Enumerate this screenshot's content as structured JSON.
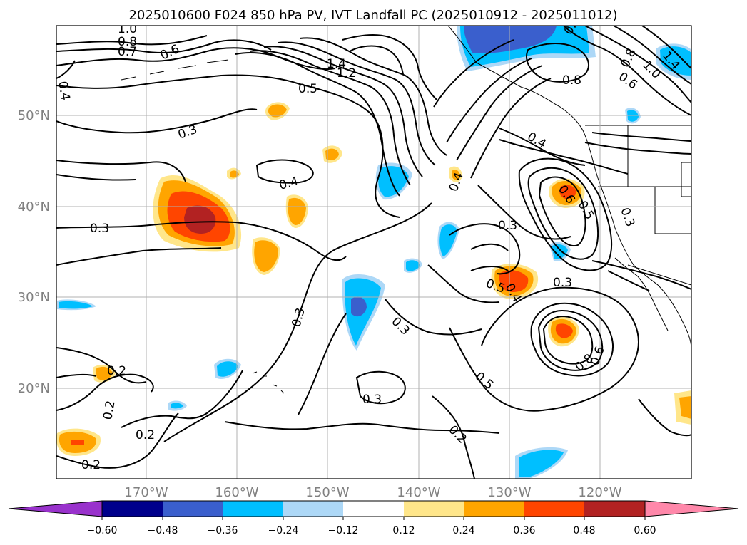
{
  "figure": {
    "title": "2025010600 F024 850 hPa PV, IVT Landfall PC (2025010912 - 2025011012)"
  },
  "map": {
    "lat_labels": [
      "50°N",
      "40°N",
      "30°N",
      "20°N"
    ],
    "lon_labels": [
      "170°W",
      "160°W",
      "150°W",
      "140°W",
      "130°W",
      "120°W"
    ],
    "contour_labels": [
      "1.0",
      "0.8",
      "0.7",
      "0.6",
      "1.4",
      "1.2",
      "0.5",
      "0.4",
      "0.3",
      "0.4",
      "0.3",
      "0.4",
      "0.4",
      "0.6",
      "0.5",
      "0.3",
      "0.3",
      "0.3",
      "0.5",
      "0.4",
      "0.3",
      "0.3",
      "0.2",
      "0.2",
      "0.2",
      "0.2",
      "0.5",
      "0.8",
      "0.6",
      "0.3",
      "0.2",
      "0.8",
      "0.6",
      "0.8",
      "0.9",
      "1.4",
      "1.0"
    ]
  },
  "colorbar": {
    "colors": [
      "#9932cc",
      "#00008b",
      "#3a5fcd",
      "#00bfff",
      "#add8f7",
      "#ffffff",
      "#ffe68a",
      "#ffa500",
      "#ff4500",
      "#b22222",
      "#ff88aa"
    ],
    "tick_labels": [
      "−0.60",
      "−0.48",
      "−0.36",
      "−0.24",
      "−0.12",
      "0.12",
      "0.24",
      "0.36",
      "0.48",
      "0.60"
    ]
  }
}
